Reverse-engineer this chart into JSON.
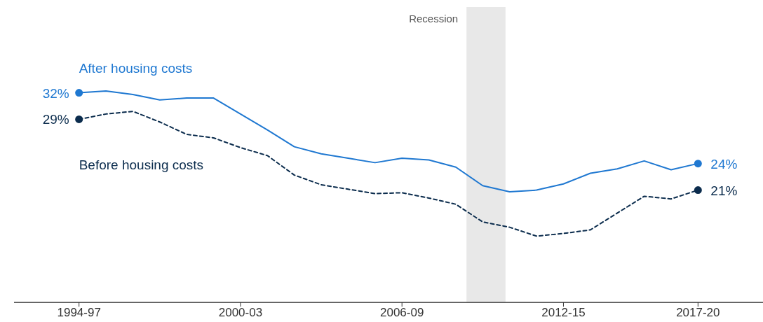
{
  "chart_data": {
    "type": "line",
    "categories": [
      "1994-97",
      null,
      null,
      null,
      null,
      null,
      "2000-03",
      null,
      null,
      null,
      null,
      null,
      "2006-09",
      null,
      null,
      null,
      null,
      null,
      "2012-15",
      null,
      null,
      null,
      null,
      "2017-20"
    ],
    "annotations": [
      "Recession"
    ],
    "tick_labels": "x",
    "grid": false,
    "legend": false,
    "series": [
      {
        "name": "After housing costs",
        "color": "#1f78d1",
        "line_style": "solid",
        "values": [
          32,
          32.2,
          31.8,
          31.2,
          31.4,
          31.4,
          29.6,
          27.8,
          25.9,
          25.1,
          24.6,
          24.1,
          24.6,
          24.4,
          23.6,
          21.5,
          20.8,
          21.0,
          21.7,
          22.9,
          23.4,
          24.3,
          23.3,
          24
        ],
        "value_labels": [
          "32%",
          null,
          null,
          null,
          null,
          null,
          null,
          null,
          null,
          null,
          null,
          null,
          null,
          null,
          null,
          null,
          null,
          null,
          null,
          null,
          null,
          null,
          null,
          "24%"
        ]
      },
      {
        "name": "Before housing costs",
        "color": "#0b2c4d",
        "line_style": "dashed",
        "values": [
          29,
          29.6,
          29.9,
          28.7,
          27.3,
          26.9,
          25.8,
          24.9,
          22.7,
          21.6,
          21.1,
          20.6,
          20.7,
          20.1,
          19.4,
          17.4,
          16.8,
          15.8,
          16.1,
          16.5,
          18.4,
          20.3,
          20,
          21
        ],
        "value_labels": [
          "29%",
          null,
          null,
          null,
          null,
          null,
          null,
          null,
          null,
          null,
          null,
          null,
          null,
          null,
          null,
          null,
          null,
          null,
          null,
          null,
          null,
          null,
          null,
          "21%"
        ]
      }
    ]
  }
}
